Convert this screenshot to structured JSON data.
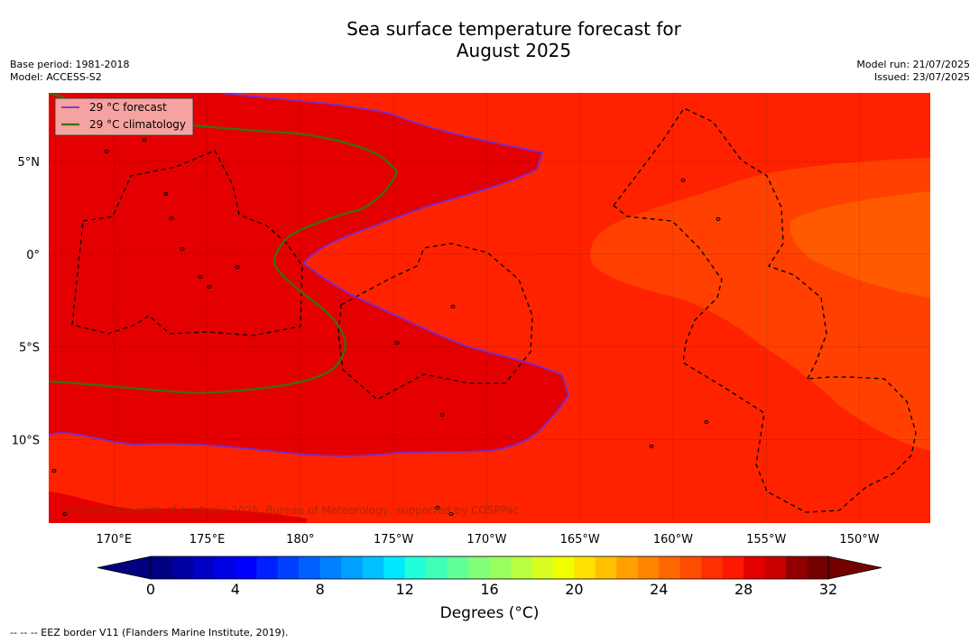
{
  "title": {
    "line1": "Sea surface temperature forecast for",
    "line2": "August 2025"
  },
  "meta_left": {
    "base_period": "Base period: 1981-2018",
    "model": "Model: ACCESS-S2"
  },
  "meta_right": {
    "model_run": "Model run: 21/07/2025",
    "issued": "Issued: 23/07/2025"
  },
  "legend": {
    "forecast": "29 °C  forecast",
    "climatology": "29 °C  climatology"
  },
  "copyright": "© Commonwealth of Australia 2025, Bureau of Meteorology, supported by COSPPac",
  "footer_note": "--  --  -- EEZ border V11 (Flanders Marine Institute, 2019).",
  "colors": {
    "field_dark": "#e40000",
    "field_main": "#ff2200",
    "field_warm_orange": "#ff4000",
    "field_light_orange": "#ff5a00",
    "forecast_line": "#7a2bd0",
    "climatology_line": "#3a6e10",
    "legend_bg": "#f5a3a0"
  },
  "chart_data": {
    "type": "heatmap",
    "variable": "Sea surface temperature",
    "units": "°C",
    "xaxis": {
      "ticks": [
        "170°E",
        "175°E",
        "180°",
        "175°W",
        "170°W",
        "165°W",
        "160°W",
        "155°W",
        "150°W"
      ],
      "tick_values": [
        170,
        175,
        180,
        185,
        190,
        195,
        200,
        205,
        210
      ],
      "range": [
        166.5,
        213.8
      ]
    },
    "yaxis": {
      "ticks": [
        "5°N",
        "0°",
        "5°S",
        "10°S"
      ],
      "tick_values": [
        5,
        0,
        -5,
        -10
      ],
      "range": [
        -14.5,
        8.7
      ]
    },
    "grid": true,
    "legend_position": "top-left",
    "legend": [
      "29 °C  forecast",
      "29 °C  climatology"
    ],
    "colorbar": {
      "label": "Degrees ( $^\\circ$C)",
      "label_display": "Degrees (°C)",
      "tick_labels": [
        "0",
        "4",
        "8",
        "12",
        "16",
        "20",
        "24",
        "28",
        "32"
      ],
      "tick_values": [
        0,
        4,
        8,
        12,
        16,
        20,
        24,
        28,
        32
      ],
      "range": [
        0,
        32
      ],
      "step": 1,
      "extend": "both",
      "colors": [
        "#000080",
        "#0000a0",
        "#0000c4",
        "#0000e4",
        "#0000ff",
        "#0020ff",
        "#0040ff",
        "#0060ff",
        "#0080ff",
        "#00a0ff",
        "#00c0ff",
        "#00e8ff",
        "#20ffd8",
        "#40ffb8",
        "#60ff98",
        "#80ff78",
        "#98ff60",
        "#b8ff40",
        "#d8ff20",
        "#f0ff00",
        "#ffe000",
        "#ffc000",
        "#ffa000",
        "#ff8400",
        "#ff6800",
        "#ff4c00",
        "#ff3000",
        "#ff1800",
        "#e40000",
        "#c80000",
        "#900000",
        "#740000"
      ]
    },
    "contours": [
      {
        "name": "29 °C  forecast",
        "level": 29
      },
      {
        "name": "29 °C  climatology",
        "level": 29
      }
    ]
  }
}
